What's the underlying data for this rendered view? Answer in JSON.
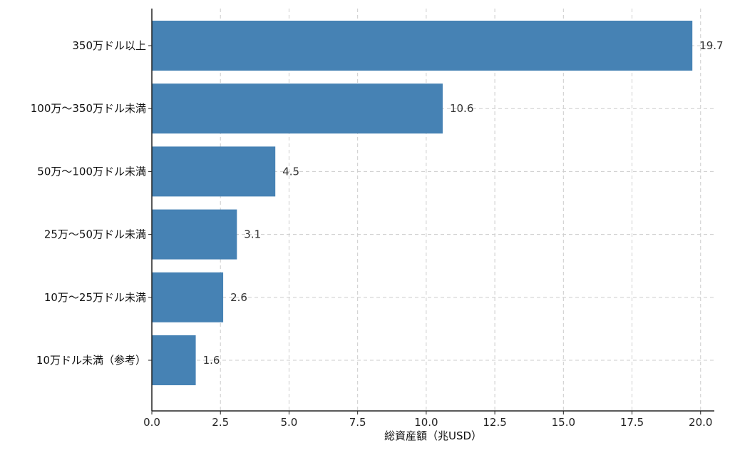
{
  "chart_data": {
    "type": "bar",
    "orientation": "horizontal",
    "categories": [
      "350万ドル以上",
      "100万～350万ドル未満",
      "50万～100万ドル未満",
      "25万～50万ドル未満",
      "10万～25万ドル未満",
      "10万ドル未満（参考）"
    ],
    "values": [
      19.7,
      10.6,
      4.5,
      3.1,
      2.6,
      1.6
    ],
    "data_labels": [
      "19.7",
      "10.6",
      "4.5",
      "3.1",
      "2.6",
      "1.6"
    ],
    "title": "",
    "xlabel": "総資産額（兆USD）",
    "ylabel": "",
    "xlim": [
      0,
      20.5
    ],
    "xticks": [
      0.0,
      2.5,
      5.0,
      7.5,
      10.0,
      12.5,
      15.0,
      17.5,
      20.0
    ],
    "xtick_labels": [
      "0.0",
      "2.5",
      "5.0",
      "7.5",
      "10.0",
      "12.5",
      "15.0",
      "17.5",
      "20.0"
    ],
    "grid": true,
    "bar_color": "#4682b4"
  }
}
